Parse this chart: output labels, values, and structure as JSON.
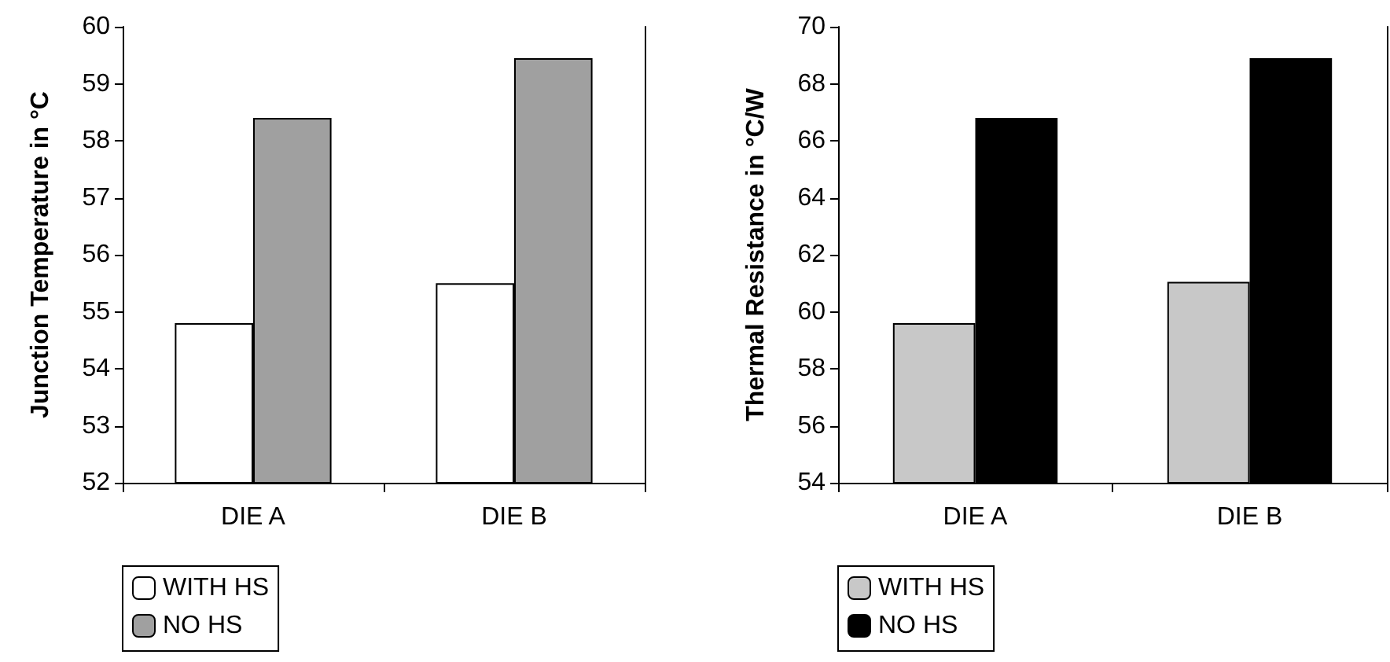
{
  "chart_data": [
    {
      "type": "bar",
      "ylabel": "Junction Temperature in °C",
      "categories": [
        "DIE A",
        "DIE B"
      ],
      "series": [
        {
          "name": "WITH HS",
          "color": "#ffffff",
          "values": [
            54.8,
            55.5
          ]
        },
        {
          "name": "NO HS",
          "color": "#a0a0a0",
          "values": [
            58.4,
            59.45
          ]
        }
      ],
      "ylim": [
        52,
        60
      ],
      "yticks": [
        52,
        53,
        54,
        55,
        56,
        57,
        58,
        59,
        60
      ],
      "grid": false,
      "legend": "bottom left"
    },
    {
      "type": "bar",
      "ylabel": "Thermal Resistance in °C/W",
      "categories": [
        "DIE A",
        "DIE B"
      ],
      "series": [
        {
          "name": "WITH HS",
          "color": "#c8c8c8",
          "values": [
            59.6,
            61.05
          ]
        },
        {
          "name": "NO HS",
          "color": "#000000",
          "values": [
            66.8,
            68.9
          ]
        }
      ],
      "ylim": [
        54,
        70
      ],
      "yticks": [
        54,
        56,
        58,
        60,
        62,
        64,
        66,
        68,
        70
      ],
      "grid": false,
      "legend": "bottom left"
    }
  ]
}
